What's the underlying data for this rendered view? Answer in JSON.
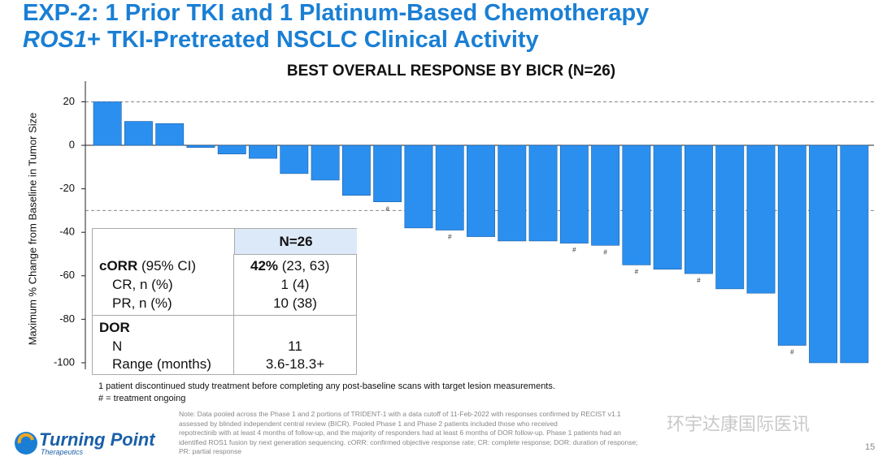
{
  "slide": {
    "title_line1": "EXP-2: 1 Prior TKI and 1 Platinum-Based Chemotherapy",
    "title_line2_italic": "ROS1",
    "title_line2_rest": "+ TKI-Pretreated NSCLC Clinical Activity"
  },
  "chart_data": {
    "type": "bar",
    "title": "BEST OVERALL RESPONSE BY BICR (N=26)",
    "y_label": "Maximum % Change from Baseline in Tumor Size",
    "values": [
      20,
      11,
      10,
      -1,
      -4,
      -6,
      -13,
      -16,
      -23,
      -26,
      -38,
      -39,
      -42,
      -44,
      -44,
      -45,
      -46,
      -55,
      -57,
      -59,
      -66,
      -68,
      -92,
      -100,
      -100
    ],
    "bar_labels": [
      null,
      null,
      null,
      null,
      null,
      null,
      null,
      null,
      null,
      "#",
      null,
      "#",
      null,
      null,
      null,
      "#",
      "#",
      "#",
      null,
      "#",
      null,
      null,
      "#",
      null,
      null
    ],
    "color": "#2b8ff0",
    "ylim": [
      -103,
      29.5
    ],
    "yticks": [
      20,
      0,
      -20,
      -40,
      -60,
      -80,
      -100
    ],
    "reference_lines": [
      20,
      -30
    ]
  },
  "table": {
    "header": "N=26",
    "rows": [
      {
        "label_bold": "cORR",
        "label": "(95% CI)",
        "value_bold": "42%",
        "value": "(23, 63)"
      },
      {
        "label": "CR, n (%)",
        "value": "1 (4)"
      },
      {
        "label": "PR, n (%)",
        "value": "10 (38)"
      },
      {
        "label_bold": "DOR"
      },
      {
        "label": "N",
        "value": "11"
      },
      {
        "label": "Range (months)",
        "value": "3.6-18.3+"
      }
    ]
  },
  "footnotes": [
    "1 patient discontinued study treatment before completing any post-baseline scans with target lesion measurements.",
    "# = treatment ongoing"
  ],
  "note": [
    "Note: Data pooled across the Phase 1 and 2 portions of TRIDENT-1 with a data cutoff of 11-Feb-2022 with responses confirmed by RECIST v1.1",
    "assessed by blinded independent central review (BICR). Pooled Phase 1 and Phase 2 patients included those who received",
    "repotrectinib with at least 4 months of follow-up, and the majority of responders had at least 6 months of DOR follow-up. Phase 1 patients had an",
    "identified ROS1 fusion by next generation sequencing. cORR: confirmed objective response rate; CR: complete response; DOR: duration of response;",
    "PR: partial response"
  ],
  "watermark": "环宇达康国际医讯",
  "logo": {
    "name": "Turning Point",
    "sub": "Therapeutics"
  },
  "page_number": "15"
}
